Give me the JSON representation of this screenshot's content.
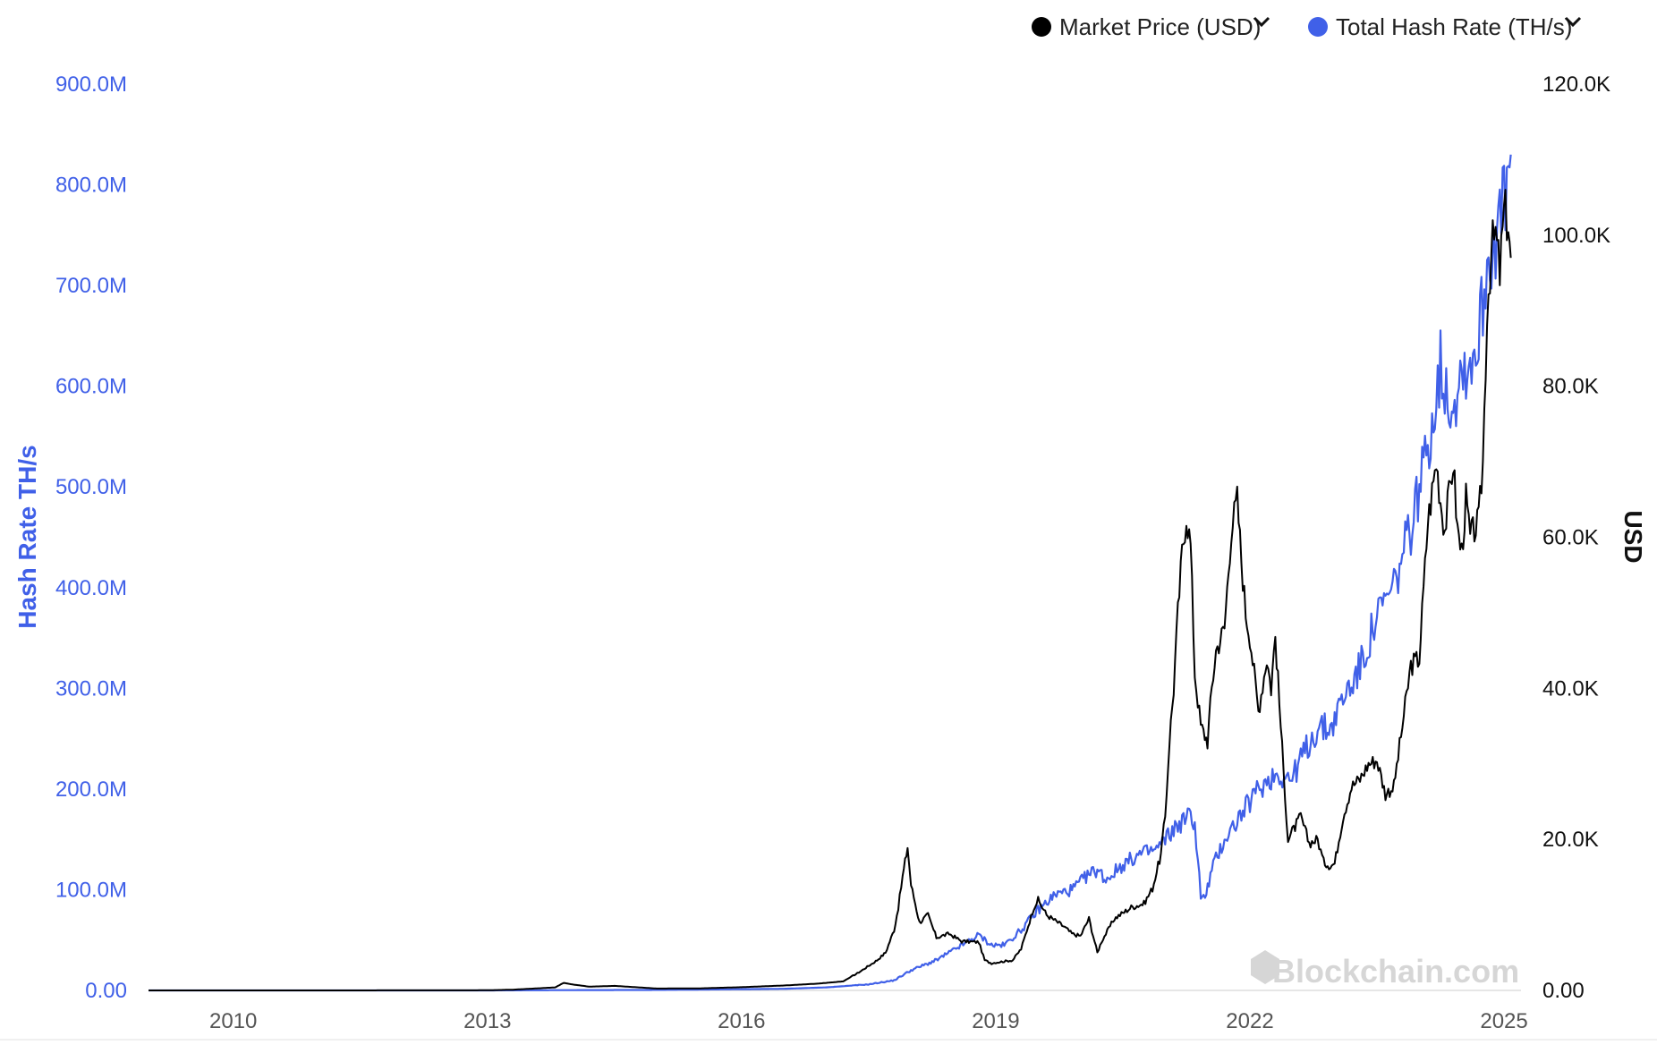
{
  "chart_data": {
    "type": "line",
    "y_left_label": "Hash Rate TH/s",
    "y_right_label": "USD",
    "x_ticks": [
      "2010",
      "2013",
      "2016",
      "2019",
      "2022",
      "2025"
    ],
    "y_left_ticks": [
      "0.00",
      "100.0M",
      "200.0M",
      "300.0M",
      "400.0M",
      "500.0M",
      "600.0M",
      "700.0M",
      "800.0M",
      "900.0M"
    ],
    "y_right_ticks": [
      "0.00",
      "20.0K",
      "40.0K",
      "60.0K",
      "80.0K",
      "100.0K",
      "120.0K"
    ],
    "x_range": [
      2009.0,
      2025.2
    ],
    "y_left_range": [
      0,
      900000000
    ],
    "y_right_range": [
      0,
      120000
    ],
    "grid": false,
    "legend_position": "top-right",
    "watermark": "Blockchain.com",
    "series": [
      {
        "name": "Market Price (USD)",
        "axis": "right",
        "color": "#000000",
        "x": [
          2009.0,
          2010.5,
          2011.5,
          2012.5,
          2013.0,
          2013.3,
          2013.8,
          2013.9,
          2014.0,
          2014.2,
          2014.5,
          2015.0,
          2015.5,
          2016.0,
          2016.5,
          2016.9,
          2017.0,
          2017.2,
          2017.4,
          2017.6,
          2017.7,
          2017.8,
          2017.85,
          2017.9,
          2017.96,
          2018.0,
          2018.1,
          2018.2,
          2018.3,
          2018.45,
          2018.6,
          2018.8,
          2018.87,
          2018.95,
          2019.0,
          2019.2,
          2019.3,
          2019.45,
          2019.5,
          2019.6,
          2019.8,
          2019.9,
          2020.0,
          2020.1,
          2020.2,
          2020.25,
          2020.4,
          2020.6,
          2020.75,
          2020.85,
          2020.95,
          2021.0,
          2021.05,
          2021.1,
          2021.15,
          2021.2,
          2021.25,
          2021.3,
          2021.35,
          2021.42,
          2021.5,
          2021.55,
          2021.6,
          2021.7,
          2021.78,
          2021.85,
          2021.9,
          2021.95,
          2022.0,
          2022.1,
          2022.2,
          2022.25,
          2022.3,
          2022.38,
          2022.45,
          2022.5,
          2022.6,
          2022.7,
          2022.8,
          2022.87,
          2022.95,
          2023.0,
          2023.1,
          2023.2,
          2023.3,
          2023.4,
          2023.5,
          2023.6,
          2023.7,
          2023.8,
          2023.9,
          2024.0,
          2024.1,
          2024.2,
          2024.25,
          2024.3,
          2024.4,
          2024.45,
          2024.5,
          2024.55,
          2024.6,
          2024.7,
          2024.75,
          2024.8,
          2024.85,
          2024.9,
          2024.95,
          2025.0,
          2025.05,
          2025.08
        ],
        "y": [
          0,
          0.1,
          5,
          10,
          20,
          100,
          400,
          1000,
          800,
          500,
          600,
          250,
          270,
          430,
          650,
          900,
          1000,
          1200,
          2500,
          4000,
          5000,
          8000,
          11000,
          15000,
          19000,
          14000,
          9000,
          10000,
          7000,
          7500,
          6500,
          6400,
          4000,
          3600,
          3700,
          4000,
          5500,
          11000,
          12000,
          10000,
          8500,
          7500,
          7200,
          9500,
          5000,
          6500,
          9500,
          11000,
          11500,
          13500,
          18000,
          23000,
          33000,
          40000,
          50000,
          58000,
          63000,
          59000,
          42000,
          35000,
          33000,
          40000,
          45000,
          48000,
          61000,
          65000,
          57000,
          50000,
          47000,
          37000,
          44000,
          40000,
          47000,
          32000,
          20000,
          21000,
          23000,
          19500,
          20000,
          17000,
          16500,
          16800,
          23000,
          27000,
          28000,
          30000,
          30500,
          26000,
          27000,
          35000,
          43000,
          44000,
          62000,
          70000,
          65000,
          61000,
          70000,
          61000,
          58000,
          65000,
          60000,
          62000,
          70000,
          90000,
          98000,
          100000,
          95000,
          103000,
          102000,
          97000
        ]
      },
      {
        "name": "Total Hash Rate (TH/s)",
        "axis": "left",
        "color": "#4060e8",
        "x": [
          2009.0,
          2012.0,
          2013.0,
          2014.0,
          2015.0,
          2016.0,
          2016.5,
          2017.0,
          2017.5,
          2017.8,
          2018.0,
          2018.3,
          2018.6,
          2018.8,
          2018.95,
          2019.1,
          2019.3,
          2019.5,
          2019.7,
          2019.9,
          2020.1,
          2020.2,
          2020.3,
          2020.5,
          2020.7,
          2020.9,
          2021.1,
          2021.3,
          2021.35,
          2021.42,
          2021.47,
          2021.55,
          2021.7,
          2021.9,
          2022.1,
          2022.3,
          2022.5,
          2022.6,
          2022.8,
          2022.95,
          2023.1,
          2023.3,
          2023.5,
          2023.7,
          2023.9,
          2024.1,
          2024.25,
          2024.3,
          2024.4,
          2024.5,
          2024.6,
          2024.7,
          2024.8,
          2024.9,
          2025.0,
          2025.05,
          2025.08
        ],
        "y": [
          0,
          0,
          0.02,
          0.3,
          0.5,
          1.2,
          1.6,
          3,
          6,
          10,
          20,
          30,
          45,
          55,
          45,
          45,
          60,
          80,
          95,
          100,
          115,
          120,
          110,
          125,
          135,
          140,
          160,
          175,
          165,
          95,
          90,
          120,
          150,
          175,
          200,
          215,
          210,
          230,
          260,
          260,
          290,
          320,
          370,
          400,
          460,
          540,
          620,
          600,
          580,
          620,
          620,
          650,
          720,
          750,
          780,
          800,
          830
        ]
      }
    ]
  }
}
